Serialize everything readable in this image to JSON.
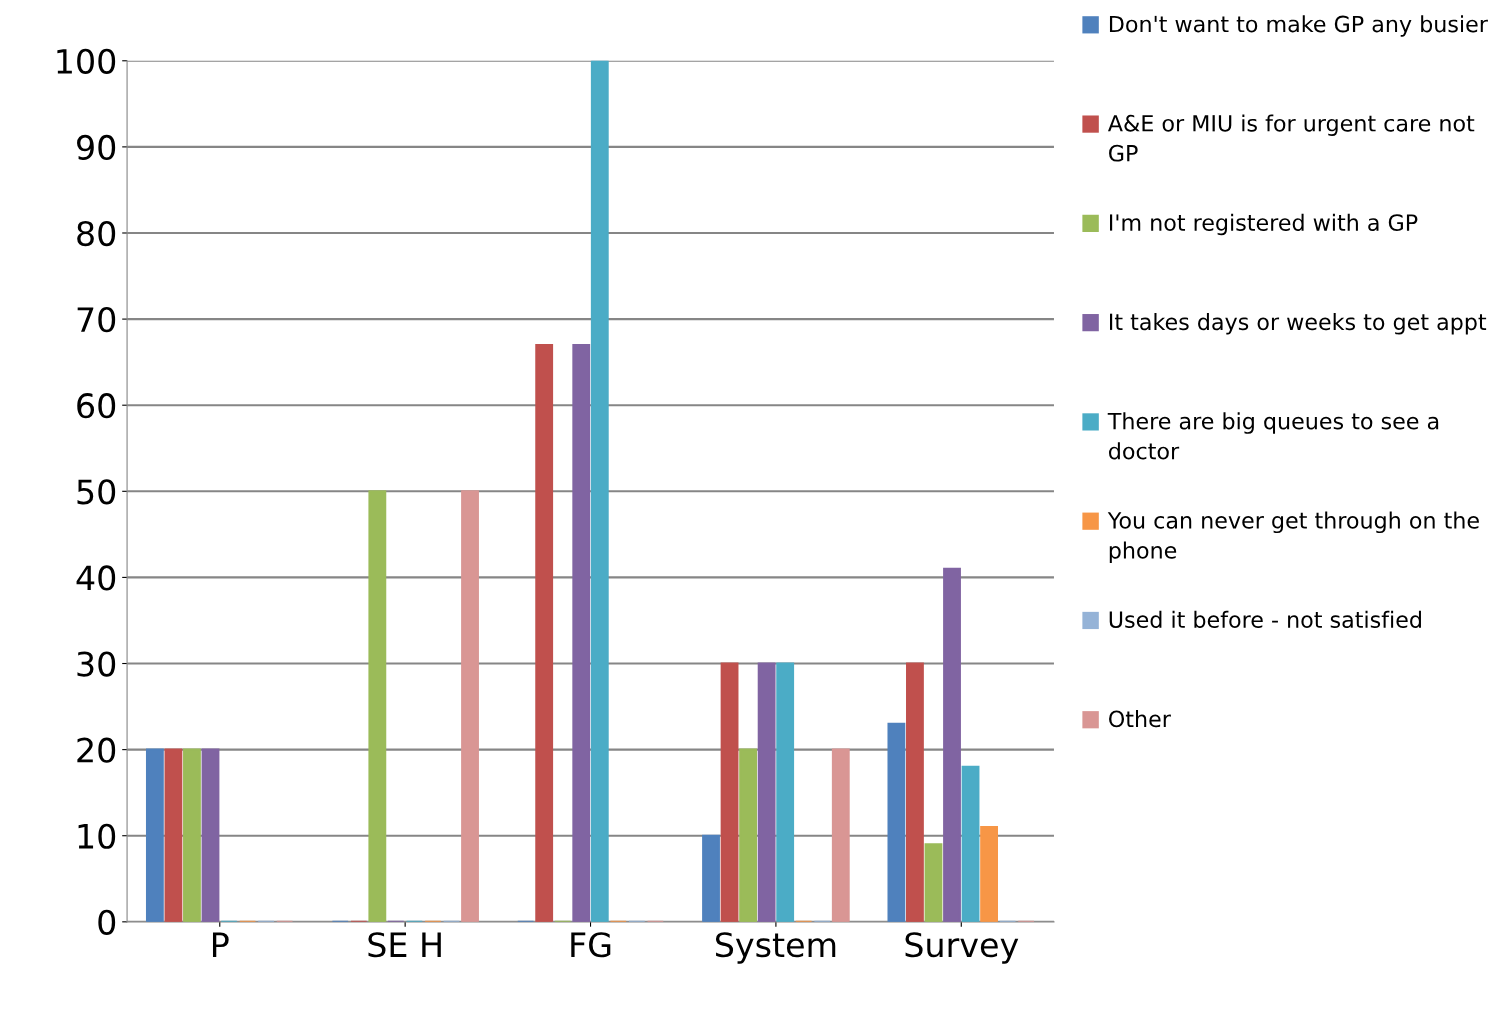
{
  "chart_data": {
    "type": "bar",
    "categories": [
      "P",
      "SE H",
      "FG",
      "System",
      "Survey"
    ],
    "series": [
      {
        "name": "Don't want to make GP any busier",
        "color": "#4f81bd",
        "values": [
          20,
          0,
          0,
          10,
          23
        ]
      },
      {
        "name": "A&E or MIU is for urgent care not GP",
        "color": "#c0504d",
        "values": [
          20,
          0,
          67,
          30,
          30
        ]
      },
      {
        "name": "I'm not registered with a GP",
        "color": "#9bbb59",
        "values": [
          20,
          50,
          0,
          20,
          9
        ]
      },
      {
        "name": "It takes days or weeks to get appt",
        "color": "#8064a2",
        "values": [
          20,
          0,
          67,
          30,
          41
        ]
      },
      {
        "name": "There are big queues to see a doctor",
        "color": "#4bacc6",
        "values": [
          0,
          0,
          100,
          30,
          18
        ]
      },
      {
        "name": "You can never get through on the phone",
        "color": "#f79646",
        "values": [
          0,
          0,
          0,
          0,
          11
        ]
      },
      {
        "name": "Used it before - not satisfied",
        "color": "#95b3d7",
        "values": [
          0,
          0,
          0,
          0,
          0
        ]
      },
      {
        "name": "Other",
        "color": "#d99694",
        "values": [
          0,
          50,
          0,
          20,
          0
        ]
      }
    ],
    "ylim": [
      0,
      100
    ],
    "yticks": [
      0,
      10,
      20,
      30,
      40,
      50,
      60,
      70,
      80,
      90,
      100
    ],
    "grid": "y",
    "legend": "top right"
  }
}
